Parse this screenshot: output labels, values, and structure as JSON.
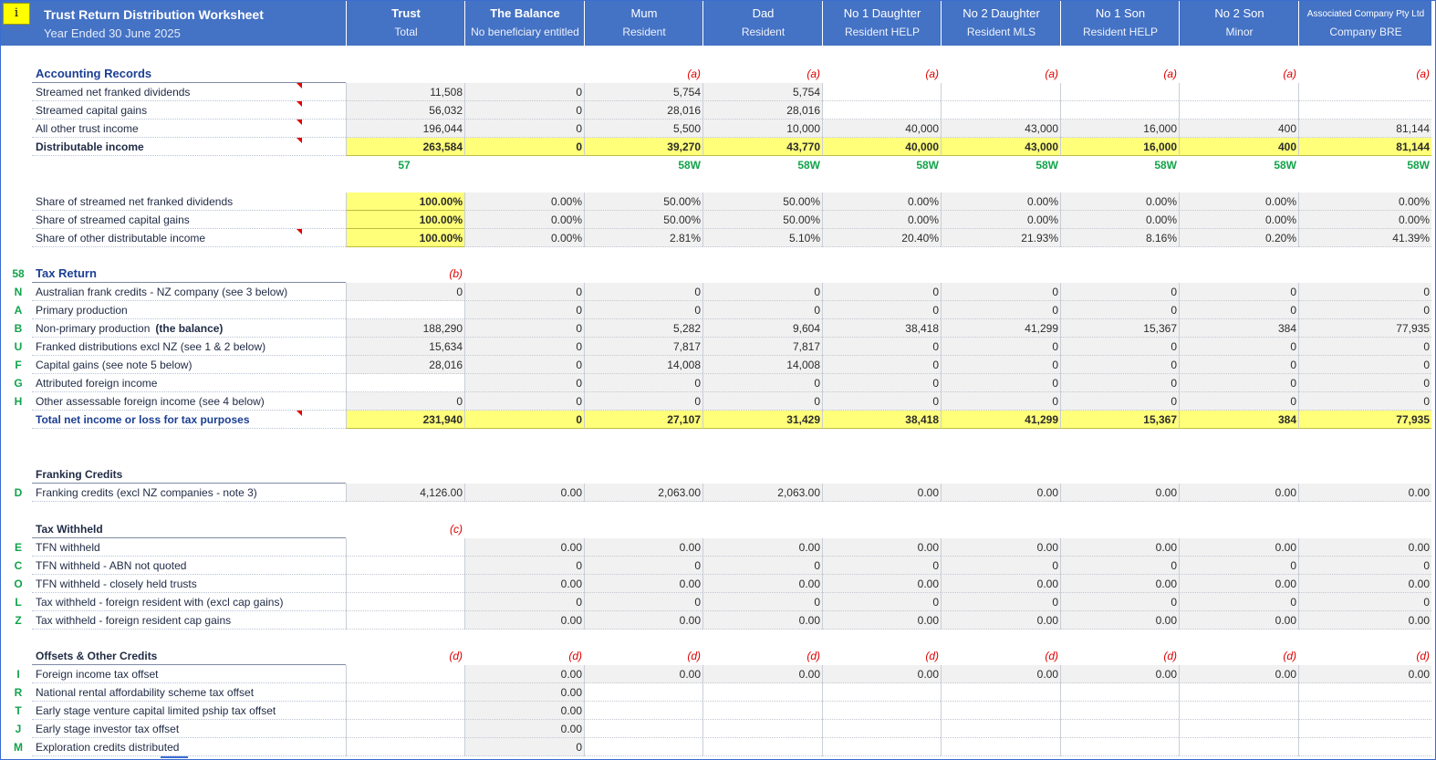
{
  "header": {
    "info_button": "i",
    "title": "Trust Return Distribution Worksheet",
    "subtitle": "Year Ended 30 June 2025",
    "columns": [
      {
        "l1": "Trust",
        "l2": "Total"
      },
      {
        "l1": "The Balance",
        "l2": "No beneficiary entitled"
      },
      {
        "l1": "Mum",
        "l2": "Resident"
      },
      {
        "l1": "Dad",
        "l2": "Resident"
      },
      {
        "l1": "No 1 Daughter",
        "l2": "Resident HELP"
      },
      {
        "l1": "No 2 Daughter",
        "l2": "Resident MLS"
      },
      {
        "l1": "No 1 Son",
        "l2": "Resident HELP"
      },
      {
        "l1": "No 2 Son",
        "l2": "Minor"
      },
      {
        "l1": "Associated Company Pty Ltd",
        "l2": "Company BRE"
      }
    ]
  },
  "rows": [
    {
      "kind": "section",
      "label": "Accounting Records",
      "style": "sect",
      "cells": [
        "",
        "",
        "(a)",
        "(a)",
        "(a)",
        "(a)",
        "(a)",
        "(a)",
        "(a)"
      ],
      "cellstyle": "red",
      "line": "solid"
    },
    {
      "label": "Streamed net franked dividends",
      "tri": true,
      "cells": [
        "11,508",
        "0",
        "5,754",
        "5,754",
        "",
        "",
        "",
        "",
        ""
      ],
      "fills": [
        "g",
        "g",
        "g",
        "g",
        "w",
        "w",
        "w",
        "w",
        "w"
      ]
    },
    {
      "label": "Streamed capital gains",
      "tri": true,
      "cells": [
        "56,032",
        "0",
        "28,016",
        "28,016",
        "",
        "",
        "",
        "",
        ""
      ],
      "fills": [
        "g",
        "g",
        "g",
        "g",
        "w",
        "w",
        "w",
        "w",
        "w"
      ]
    },
    {
      "label": "All other trust income",
      "tri": true,
      "cells": [
        "196,044",
        "0",
        "5,500",
        "10,000",
        "40,000",
        "43,000",
        "16,000",
        "400",
        "81,144"
      ],
      "fills": [
        "g",
        "g",
        "g",
        "g",
        "g",
        "g",
        "g",
        "g",
        "g"
      ]
    },
    {
      "label": "Distributable income",
      "bold": true,
      "tri": true,
      "cells": [
        "263,584",
        "0",
        "39,270",
        "43,770",
        "40,000",
        "43,000",
        "16,000",
        "400",
        "81,144"
      ],
      "fills": [
        "y",
        "y",
        "y",
        "y",
        "y",
        "y",
        "y",
        "y",
        "y"
      ]
    },
    {
      "label": "",
      "cells": [
        "57",
        "",
        "58W",
        "58W",
        "58W",
        "58W",
        "58W",
        "58W",
        "58W"
      ],
      "cellstyle": "grn",
      "first_center": true
    },
    {
      "kind": "blank"
    },
    {
      "label": "Share of streamed net franked dividends",
      "cells": [
        "100.00%",
        "0.00%",
        "50.00%",
        "50.00%",
        "0.00%",
        "0.00%",
        "0.00%",
        "0.00%",
        "0.00%"
      ],
      "fills": [
        "y",
        "g",
        "g",
        "g",
        "g",
        "g",
        "g",
        "g",
        "g"
      ],
      "topline": true
    },
    {
      "label": "Share of streamed capital gains",
      "cells": [
        "100.00%",
        "0.00%",
        "50.00%",
        "50.00%",
        "0.00%",
        "0.00%",
        "0.00%",
        "0.00%",
        "0.00%"
      ],
      "fills": [
        "y",
        "g",
        "g",
        "g",
        "g",
        "g",
        "g",
        "g",
        "g"
      ]
    },
    {
      "label": "Share of other distributable income",
      "tri": true,
      "cells": [
        "100.00%",
        "0.00%",
        "2.81%",
        "5.10%",
        "20.40%",
        "21.93%",
        "8.16%",
        "0.20%",
        "41.39%"
      ],
      "fills": [
        "y",
        "g",
        "g",
        "g",
        "g",
        "g",
        "g",
        "g",
        "g"
      ]
    },
    {
      "kind": "blank"
    },
    {
      "kind": "section",
      "code": "58",
      "label": "Tax Return",
      "style": "sect",
      "cells": [
        "(b)",
        "",
        "",
        "",
        "",
        "",
        "",
        "",
        ""
      ],
      "cellstyle": "red",
      "line": "solid"
    },
    {
      "code": "N",
      "label": "Australian frank credits - NZ company (see 3 below)",
      "cells": [
        "0",
        "0",
        "0",
        "0",
        "0",
        "0",
        "0",
        "0",
        "0"
      ],
      "fills": [
        "g",
        "g",
        "g",
        "g",
        "g",
        "g",
        "g",
        "g",
        "g"
      ]
    },
    {
      "code": "A",
      "label": "Primary production",
      "cells": [
        "",
        "0",
        "0",
        "0",
        "0",
        "0",
        "0",
        "0",
        "0"
      ],
      "fills": [
        "w",
        "g",
        "g",
        "g",
        "g",
        "g",
        "g",
        "g",
        "g"
      ]
    },
    {
      "code": "B",
      "label": "Non-primary production",
      "label_bold": "(the balance)",
      "cells": [
        "188,290",
        "0",
        "5,282",
        "9,604",
        "38,418",
        "41,299",
        "15,367",
        "384",
        "77,935"
      ],
      "fills": [
        "g",
        "g",
        "g",
        "g",
        "g",
        "g",
        "g",
        "g",
        "g"
      ]
    },
    {
      "code": "U",
      "label": "Franked distributions excl NZ (see 1 & 2 below)",
      "cells": [
        "15,634",
        "0",
        "7,817",
        "7,817",
        "0",
        "0",
        "0",
        "0",
        "0"
      ],
      "fills": [
        "g",
        "g",
        "g",
        "g",
        "g",
        "g",
        "g",
        "g",
        "g"
      ]
    },
    {
      "code": "F",
      "label": "Capital gains (see note 5 below)",
      "cells": [
        "28,016",
        "0",
        "14,008",
        "14,008",
        "0",
        "0",
        "0",
        "0",
        "0"
      ],
      "fills": [
        "g",
        "g",
        "g",
        "g",
        "g",
        "g",
        "g",
        "g",
        "g"
      ]
    },
    {
      "code": "G",
      "label": "Attributed foreign income",
      "cells": [
        "",
        "0",
        "0",
        "0",
        "0",
        "0",
        "0",
        "0",
        "0"
      ],
      "fills": [
        "w",
        "g",
        "g",
        "g",
        "g",
        "g",
        "g",
        "g",
        "g"
      ]
    },
    {
      "code": "H",
      "label": "Other assessable foreign income (see 4 below)",
      "cells": [
        "0",
        "0",
        "0",
        "0",
        "0",
        "0",
        "0",
        "0",
        "0"
      ],
      "fills": [
        "g",
        "g",
        "g",
        "g",
        "g",
        "g",
        "g",
        "g",
        "g"
      ]
    },
    {
      "label": "Total net income or loss for tax purposes",
      "bold": true,
      "blue": true,
      "tri": true,
      "cells": [
        "231,940",
        "0",
        "27,107",
        "31,429",
        "38,418",
        "41,299",
        "15,367",
        "384",
        "77,935"
      ],
      "fills": [
        "y",
        "y",
        "y",
        "y",
        "y",
        "y",
        "y",
        "y",
        "y"
      ]
    },
    {
      "kind": "blank"
    },
    {
      "kind": "blank"
    },
    {
      "kind": "section",
      "label": "Franking Credits",
      "style": "sect2",
      "cells": [
        "",
        "",
        "",
        "",
        "",
        "",
        "",
        "",
        ""
      ],
      "cellstyle": "red",
      "line": "solid"
    },
    {
      "code": "D",
      "label": "Franking credits (excl NZ companies - note 3)",
      "cells": [
        "4,126.00",
        "0.00",
        "2,063.00",
        "2,063.00",
        "0.00",
        "0.00",
        "0.00",
        "0.00",
        "0.00"
      ],
      "fills": [
        "g",
        "g",
        "g",
        "g",
        "g",
        "g",
        "g",
        "g",
        "g"
      ]
    },
    {
      "kind": "blank"
    },
    {
      "kind": "section",
      "label": "Tax Withheld",
      "style": "sect2",
      "cells": [
        "(c)",
        "",
        "",
        "",
        "",
        "",
        "",
        "",
        ""
      ],
      "cellstyle": "red",
      "line": "solid"
    },
    {
      "code": "E",
      "label": "TFN withheld",
      "cells": [
        "",
        "0.00",
        "0.00",
        "0.00",
        "0.00",
        "0.00",
        "0.00",
        "0.00",
        "0.00"
      ],
      "fills": [
        "w",
        "g",
        "g",
        "g",
        "g",
        "g",
        "g",
        "g",
        "g"
      ]
    },
    {
      "code": "C",
      "label": "TFN withheld - ABN not quoted",
      "cells": [
        "",
        "0",
        "0",
        "0",
        "0",
        "0",
        "0",
        "0",
        "0"
      ],
      "fills": [
        "w",
        "g",
        "g",
        "g",
        "g",
        "g",
        "g",
        "g",
        "g"
      ]
    },
    {
      "code": "O",
      "label": "TFN withheld - closely held trusts",
      "cells": [
        "",
        "0.00",
        "0.00",
        "0.00",
        "0.00",
        "0.00",
        "0.00",
        "0.00",
        "0.00"
      ],
      "fills": [
        "w",
        "g",
        "g",
        "g",
        "g",
        "g",
        "g",
        "g",
        "g"
      ]
    },
    {
      "code": "L",
      "label": "Tax withheld - foreign resident with (excl cap gains)",
      "cells": [
        "",
        "0",
        "0",
        "0",
        "0",
        "0",
        "0",
        "0",
        "0"
      ],
      "fills": [
        "w",
        "g",
        "g",
        "g",
        "g",
        "g",
        "g",
        "g",
        "g"
      ]
    },
    {
      "code": "Z",
      "label": "Tax withheld - foreign resident cap gains",
      "cells": [
        "",
        "0.00",
        "0.00",
        "0.00",
        "0.00",
        "0.00",
        "0.00",
        "0.00",
        "0.00"
      ],
      "fills": [
        "w",
        "g",
        "g",
        "g",
        "g",
        "g",
        "g",
        "g",
        "g"
      ]
    },
    {
      "kind": "blank"
    },
    {
      "kind": "section",
      "label": "Offsets & Other Credits",
      "style": "sect2",
      "cells": [
        "(d)",
        "(d)",
        "(d)",
        "(d)",
        "(d)",
        "(d)",
        "(d)",
        "(d)",
        "(d)"
      ],
      "cellstyle": "red",
      "line": "solid"
    },
    {
      "code": "I",
      "label": "Foreign income tax offset",
      "cells": [
        "",
        "0.00",
        "0.00",
        "0.00",
        "0.00",
        "0.00",
        "0.00",
        "0.00",
        "0.00"
      ],
      "fills": [
        "w",
        "g",
        "g",
        "g",
        "g",
        "g",
        "g",
        "g",
        "g"
      ]
    },
    {
      "code": "R",
      "label": "National rental affordability scheme tax offset",
      "cells": [
        "",
        "0.00",
        "",
        "",
        "",
        "",
        "",
        "",
        ""
      ],
      "fills": [
        "w",
        "g",
        "w",
        "w",
        "w",
        "w",
        "w",
        "w",
        "w"
      ]
    },
    {
      "code": "T",
      "label": "Early stage venture capital limited pship tax offset",
      "cells": [
        "",
        "0.00",
        "",
        "",
        "",
        "",
        "",
        "",
        ""
      ],
      "fills": [
        "w",
        "g",
        "w",
        "w",
        "w",
        "w",
        "w",
        "w",
        "w"
      ]
    },
    {
      "code": "J",
      "label": "Early stage investor tax offset",
      "cells": [
        "",
        "0.00",
        "",
        "",
        "",
        "",
        "",
        "",
        ""
      ],
      "fills": [
        "w",
        "g",
        "w",
        "w",
        "w",
        "w",
        "w",
        "w",
        "w"
      ]
    },
    {
      "code": "M",
      "label": "Exploration credits distributed",
      "cells": [
        "",
        "0",
        "",
        "",
        "",
        "",
        "",
        "",
        ""
      ],
      "fills": [
        "w",
        "g",
        "w",
        "w",
        "w",
        "w",
        "w",
        "w",
        "w"
      ]
    }
  ]
}
